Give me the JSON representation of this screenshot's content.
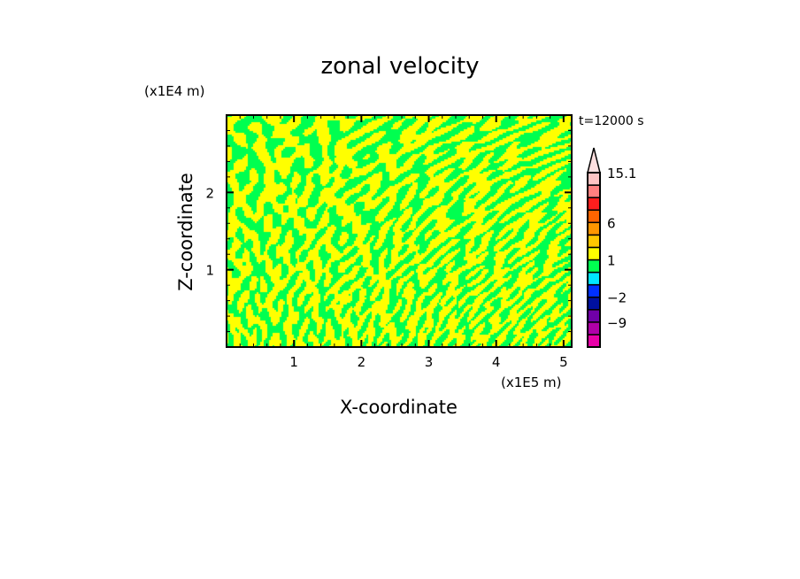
{
  "chart_data": {
    "type": "heatmap",
    "title": "zonal velocity",
    "xlabel": "X-coordinate",
    "ylabel": "Z-coordinate",
    "x_unit": "(x1E5 m)",
    "y_unit": "(x1E4 m)",
    "time_label": "t=12000 s",
    "xlim": [
      0,
      5.12
    ],
    "ylim": [
      0,
      3.0
    ],
    "x_ticks": [
      1,
      2,
      3,
      4,
      5
    ],
    "x_tick_labels": [
      "1",
      "2",
      "3",
      "4",
      "5"
    ],
    "y_ticks": [
      1,
      2
    ],
    "y_tick_labels": [
      "1",
      "2"
    ],
    "colorbar": {
      "labels": [
        {
          "text": "15.1",
          "level": 14
        },
        {
          "text": "6",
          "level": 10
        },
        {
          "text": "1",
          "level": 7
        },
        {
          "text": "-2",
          "level": 4
        },
        {
          "text": "-9",
          "level": 2
        }
      ],
      "colors": [
        "#e800a8",
        "#b000a8",
        "#7000a8",
        "#0010a0",
        "#0030ff",
        "#00e6ff",
        "#00ff50",
        "#ffff00",
        "#ffc800",
        "#ff9600",
        "#ff6400",
        "#ff1e1e",
        "#ff8080",
        "#ffc4c4"
      ],
      "extend_max_color": "#ffe0e0"
    },
    "field_note_values": {
      "dominant_colors": [
        "#ffff00",
        "#00ff50"
      ]
    }
  }
}
